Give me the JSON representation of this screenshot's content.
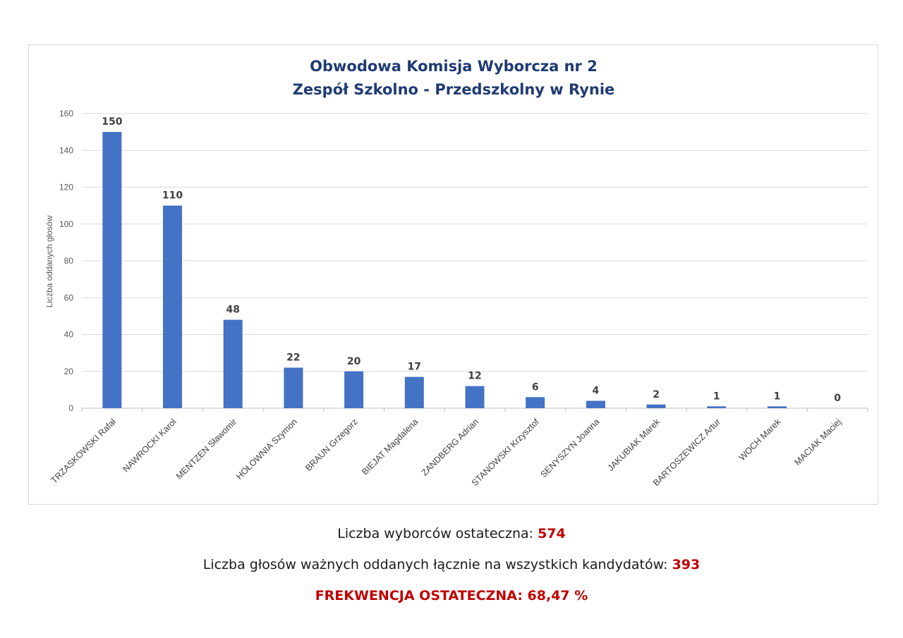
{
  "chart_data": {
    "type": "bar",
    "title": [
      "Obwodowa Komisja Wyborcza nr 2",
      "Zespół Szkolno - Przedszkolny w Rynie"
    ],
    "ylabel": "Liczba oddanych głosów",
    "ylim": [
      0,
      160
    ],
    "yticks": [
      0,
      20,
      40,
      60,
      80,
      100,
      120,
      140,
      160
    ],
    "grid": true,
    "bar_color": "#4472c4",
    "categories": [
      "TRZASKOWSKI Rafał",
      "NAWROCKI Karol",
      "MENTZEN Sławomir",
      "HOŁOWNIA Szymon",
      "BRAUN Grzegorz",
      "BIEJAT Magdalena",
      "ZANDBERG Adrian",
      "STANOWSKI Krzysztof",
      "SENYSZYN Joanna",
      "JAKUBIAK Marek",
      "BARTOSZEWICZ Artur",
      "WOCH Marek",
      "MACIAK Maciej"
    ],
    "values": [
      150,
      110,
      48,
      22,
      20,
      17,
      12,
      6,
      4,
      2,
      1,
      1,
      0
    ]
  },
  "summary": {
    "voters_label": "Liczba wyborców ostateczna: ",
    "voters_value": "574",
    "valid_label": "Liczba głosów ważnych oddanych łącznie na wszystkich kandydatów: ",
    "valid_value": "393",
    "turnout": "FREKWENCJA OSTATECZNA: 68,47 %"
  },
  "colors": {
    "accent": "#c00000",
    "title": "#1f3b73"
  }
}
